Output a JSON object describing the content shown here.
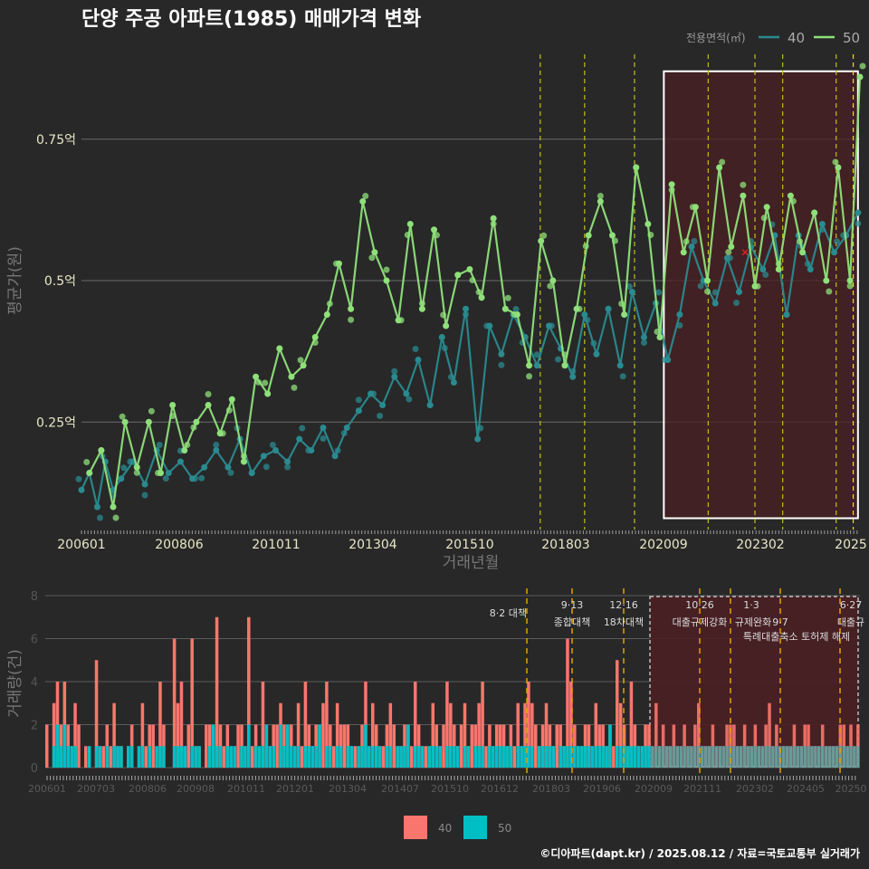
{
  "title": "단양 주공 아파트(1985) 매매가격 변화",
  "legend": {
    "title": "전용면적(㎡)",
    "items": [
      {
        "label": "40",
        "color": "#2a8a8f"
      },
      {
        "label": "50",
        "color": "#8fe07a"
      }
    ]
  },
  "bottom_legend": {
    "items": [
      {
        "label": "40",
        "color": "#f8766d"
      },
      {
        "label": "50",
        "color": "#00bfc4"
      }
    ]
  },
  "credit": "©디아파트(dapt.kr) / 2025.08.12 / 자료=국토교통부 실거래가",
  "chart_data": [
    {
      "type": "line",
      "title": "단양 주공 아파트(1985) 매매가격 변화",
      "xlabel": "거래년월",
      "ylabel": "평균가(원)",
      "x_ticks": [
        "200601",
        "200806",
        "201011",
        "201304",
        "201510",
        "201803",
        "202009",
        "202302",
        "2025"
      ],
      "y_ticks": [
        "0.25억",
        "0.5억",
        "0.75억"
      ],
      "y_tick_values": [
        0.25,
        0.5,
        0.75
      ],
      "ylim": [
        0.06,
        0.9
      ],
      "xlim": [
        2006.0,
        2025.65
      ],
      "grid": true,
      "policy_lines": [
        2017.58,
        2018.7,
        2019.96,
        2021.82,
        2023.0,
        2023.7,
        2025.05,
        2025.48
      ],
      "highlight_range": [
        2020.7,
        2025.6
      ],
      "highlight_y": [
        0.08,
        0.87
      ],
      "marker_x": {
        "x": 2022.75,
        "y": 0.55
      },
      "series": [
        {
          "name": "40",
          "color": "#2a8a8f",
          "x": [
            2006.0,
            2006.2,
            2006.4,
            2006.6,
            2006.8,
            2007.0,
            2007.3,
            2007.6,
            2007.9,
            2008.2,
            2008.5,
            2008.8,
            2009.1,
            2009.4,
            2009.7,
            2010.0,
            2010.3,
            2010.6,
            2010.9,
            2011.2,
            2011.5,
            2011.8,
            2012.1,
            2012.4,
            2012.7,
            2013.0,
            2013.3,
            2013.6,
            2013.9,
            2014.2,
            2014.5,
            2014.8,
            2015.1,
            2015.4,
            2015.7,
            2016.0,
            2016.3,
            2016.6,
            2016.9,
            2017.2,
            2017.5,
            2017.8,
            2018.1,
            2018.4,
            2018.7,
            2019.0,
            2019.3,
            2019.6,
            2019.9,
            2020.2,
            2020.5,
            2020.8,
            2021.1,
            2021.4,
            2021.7,
            2022.0,
            2022.3,
            2022.6,
            2022.9,
            2023.2,
            2023.5,
            2023.8,
            2024.1,
            2024.4,
            2024.7,
            2025.0,
            2025.3,
            2025.6
          ],
          "y": [
            0.13,
            0.16,
            0.1,
            0.18,
            0.13,
            0.15,
            0.18,
            0.14,
            0.2,
            0.16,
            0.18,
            0.15,
            0.17,
            0.2,
            0.17,
            0.22,
            0.16,
            0.19,
            0.2,
            0.18,
            0.22,
            0.2,
            0.24,
            0.19,
            0.24,
            0.27,
            0.3,
            0.28,
            0.33,
            0.3,
            0.36,
            0.28,
            0.4,
            0.32,
            0.45,
            0.22,
            0.42,
            0.37,
            0.44,
            0.4,
            0.35,
            0.42,
            0.38,
            0.33,
            0.44,
            0.37,
            0.45,
            0.35,
            0.48,
            0.4,
            0.46,
            0.36,
            0.44,
            0.56,
            0.5,
            0.46,
            0.54,
            0.48,
            0.56,
            0.52,
            0.58,
            0.44,
            0.58,
            0.52,
            0.6,
            0.55,
            0.58,
            0.62
          ]
        },
        {
          "name": "50",
          "color": "#8fe07a",
          "x": [
            2006.2,
            2006.5,
            2006.8,
            2007.1,
            2007.4,
            2007.7,
            2008.0,
            2008.3,
            2008.6,
            2008.9,
            2009.2,
            2009.5,
            2009.8,
            2010.1,
            2010.4,
            2010.7,
            2011.0,
            2011.3,
            2011.6,
            2011.9,
            2012.2,
            2012.5,
            2012.8,
            2013.1,
            2013.4,
            2013.7,
            2014.0,
            2014.3,
            2014.6,
            2014.9,
            2015.2,
            2015.5,
            2015.8,
            2016.1,
            2016.4,
            2016.7,
            2017.0,
            2017.3,
            2017.6,
            2017.9,
            2018.2,
            2018.5,
            2018.8,
            2019.1,
            2019.4,
            2019.7,
            2020.0,
            2020.3,
            2020.6,
            2020.9,
            2021.2,
            2021.5,
            2021.8,
            2022.1,
            2022.4,
            2022.7,
            2023.0,
            2023.3,
            2023.6,
            2023.9,
            2024.2,
            2024.5,
            2024.8,
            2025.1,
            2025.4,
            2025.65
          ],
          "y": [
            0.16,
            0.2,
            0.1,
            0.25,
            0.17,
            0.25,
            0.16,
            0.28,
            0.2,
            0.25,
            0.28,
            0.23,
            0.29,
            0.18,
            0.33,
            0.3,
            0.38,
            0.33,
            0.35,
            0.4,
            0.44,
            0.53,
            0.45,
            0.64,
            0.55,
            0.5,
            0.43,
            0.6,
            0.45,
            0.59,
            0.42,
            0.51,
            0.52,
            0.47,
            0.61,
            0.45,
            0.44,
            0.35,
            0.57,
            0.5,
            0.35,
            0.45,
            0.58,
            0.64,
            0.58,
            0.44,
            0.7,
            0.6,
            0.4,
            0.67,
            0.55,
            0.63,
            0.5,
            0.7,
            0.56,
            0.65,
            0.49,
            0.63,
            0.52,
            0.65,
            0.55,
            0.62,
            0.5,
            0.7,
            0.5,
            0.86
          ]
        }
      ]
    },
    {
      "type": "bar",
      "stacked": true,
      "xlabel": "",
      "ylabel": "거래량(건)",
      "ylim": [
        0,
        8
      ],
      "y_ticks": [
        "0",
        "2",
        "4",
        "6",
        "8"
      ],
      "x_ticks": [
        "200601",
        "200703",
        "200806",
        "200908",
        "201011",
        "201201",
        "201304",
        "201407",
        "201510",
        "201612",
        "201803",
        "201906",
        "202009",
        "202111",
        "202302",
        "202405",
        "20250"
      ],
      "annotations": [
        {
          "date": "8·2 대책",
          "x": 2017.58
        },
        {
          "date": "9·13",
          "label": "종합대책",
          "x": 2018.7
        },
        {
          "date": "12·16",
          "label": "18차대책",
          "x": 2019.96
        },
        {
          "date": "10·26",
          "label": "대출규제강화",
          "x": 2021.82
        },
        {
          "date": "1·3",
          "label": "규제완화",
          "x": 2023.0
        },
        {
          "date": "9·7",
          "label": "특례대출축소 토허제 해제",
          "x": 2023.7
        },
        {
          "date": "6·27",
          "label": "대출규",
          "x": 2025.48
        }
      ],
      "series": [
        {
          "name": "40",
          "color": "#f8766d",
          "values": [
            2,
            0,
            3,
            4,
            2,
            4,
            2,
            1,
            3,
            2,
            0,
            1,
            0,
            0,
            5,
            1,
            1,
            2,
            1,
            3,
            1,
            1,
            0,
            1,
            2,
            0,
            0,
            3,
            1,
            2,
            2,
            0,
            4,
            2,
            0,
            0,
            6,
            3,
            4,
            1,
            2,
            6,
            1,
            1,
            0,
            2,
            2,
            1,
            7,
            2,
            1,
            2,
            0,
            1,
            2,
            2,
            1,
            7,
            1,
            2,
            0,
            4,
            2,
            1,
            2,
            2,
            3,
            2,
            1,
            2,
            1,
            3,
            1,
            4,
            2,
            1,
            2,
            1,
            3,
            4,
            2,
            1,
            3,
            2,
            2,
            2,
            1,
            1,
            1,
            2,
            4,
            1,
            3,
            2,
            1,
            1,
            2,
            3,
            2,
            1,
            1,
            2,
            2,
            1,
            4,
            2,
            1,
            1,
            1,
            3,
            2,
            1,
            2,
            4,
            3,
            2,
            1,
            2,
            3,
            1,
            2,
            2,
            3,
            4,
            1,
            2,
            1,
            2,
            2,
            2,
            1,
            2,
            1,
            3,
            1,
            3,
            4,
            3,
            2,
            1,
            2,
            3,
            2,
            1,
            2,
            2,
            1,
            6,
            4,
            2,
            1,
            1,
            2,
            2,
            1,
            3,
            2,
            2,
            1,
            2,
            1,
            5,
            3,
            2,
            1,
            4,
            2,
            1,
            1,
            2,
            2,
            1,
            3,
            1,
            2,
            1,
            1,
            2,
            1,
            1,
            2,
            1,
            1,
            2,
            3,
            1,
            1,
            1,
            2,
            1,
            1,
            1,
            2,
            2,
            2,
            1,
            1,
            2,
            1,
            1,
            2,
            1,
            1,
            2,
            3,
            1,
            2,
            1,
            1,
            1,
            1,
            2,
            1,
            1,
            2,
            2,
            1,
            1,
            1,
            2,
            1,
            1,
            1,
            1,
            2,
            2,
            1,
            2,
            1,
            2
          ]
        },
        {
          "name": "50",
          "color": "#00bfc4",
          "values": [
            0,
            0,
            1,
            2,
            1,
            2,
            1,
            1,
            1,
            0,
            0,
            0,
            1,
            0,
            1,
            1,
            0,
            1,
            0,
            1,
            1,
            1,
            0,
            1,
            1,
            0,
            1,
            1,
            0,
            1,
            0,
            1,
            1,
            1,
            0,
            0,
            1,
            1,
            1,
            1,
            0,
            1,
            1,
            1,
            0,
            0,
            1,
            2,
            1,
            1,
            0,
            1,
            1,
            1,
            0,
            1,
            1,
            2,
            0,
            1,
            1,
            1,
            2,
            1,
            1,
            0,
            2,
            1,
            2,
            1,
            1,
            1,
            0,
            1,
            1,
            1,
            1,
            2,
            0,
            1,
            1,
            0,
            1,
            1,
            0,
            1,
            1,
            0,
            1,
            1,
            2,
            1,
            1,
            1,
            1,
            0,
            1,
            1,
            0,
            1,
            1,
            1,
            2,
            0,
            1,
            1,
            1,
            0,
            1,
            1,
            1,
            1,
            0,
            1,
            1,
            1,
            1,
            0,
            1,
            1,
            0,
            1,
            1,
            1,
            0,
            1,
            1,
            1,
            1,
            1,
            1,
            1,
            0,
            1,
            1,
            1,
            1,
            1,
            0,
            1,
            1,
            1,
            1,
            1,
            0,
            1,
            1,
            1,
            1,
            1,
            1,
            1,
            1,
            1,
            1,
            1,
            1,
            1,
            1,
            2,
            0,
            1,
            1,
            1,
            1,
            1,
            1,
            1,
            1,
            1,
            1,
            1,
            1,
            1,
            1,
            1,
            1,
            1,
            1,
            1,
            1,
            1,
            1,
            1,
            1,
            1,
            1,
            1,
            1,
            1,
            1,
            1,
            1,
            1,
            1,
            1,
            1,
            1,
            1,
            1,
            1,
            1,
            1,
            1,
            1,
            1,
            1,
            1,
            1,
            1,
            1,
            1,
            1,
            1,
            1,
            1,
            1,
            1,
            1,
            1,
            1,
            1,
            1,
            1,
            1,
            1,
            1,
            1,
            1,
            1,
            1,
            1,
            1,
            1
          ]
        }
      ]
    }
  ]
}
